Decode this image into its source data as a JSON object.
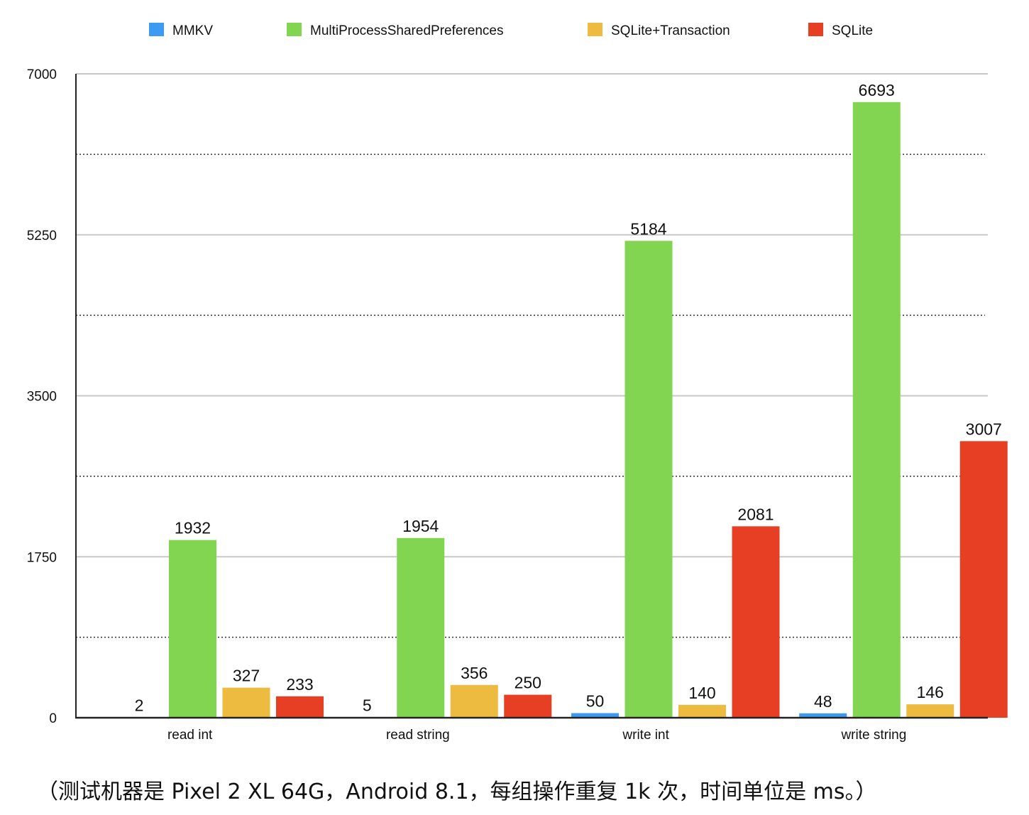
{
  "chart_data": {
    "type": "bar",
    "categories": [
      "read int",
      "read string",
      "write int",
      "write string"
    ],
    "series": [
      {
        "name": "MMKV",
        "color": "#3d9af3",
        "values": [
          2,
          5,
          50,
          48
        ]
      },
      {
        "name": "MultiProcessSharedPreferences",
        "color": "#81d550",
        "values": [
          1932,
          1954,
          5184,
          6693
        ]
      },
      {
        "name": "SQLite+Transaction",
        "color": "#ecbb3f",
        "values": [
          327,
          356,
          140,
          146
        ]
      },
      {
        "name": "SQLite",
        "color": "#e73f24",
        "values": [
          233,
          250,
          2081,
          3007
        ]
      }
    ],
    "ylim": [
      0,
      7000
    ],
    "yticks": [
      "0",
      "1750",
      "3500",
      "5250",
      "7000"
    ],
    "grid": true,
    "legend_position": "top"
  },
  "caption": "（测试机器是 Pixel 2 XL 64G，Android 8.1，每组操作重复 1k 次，时间单位是 ms。）"
}
